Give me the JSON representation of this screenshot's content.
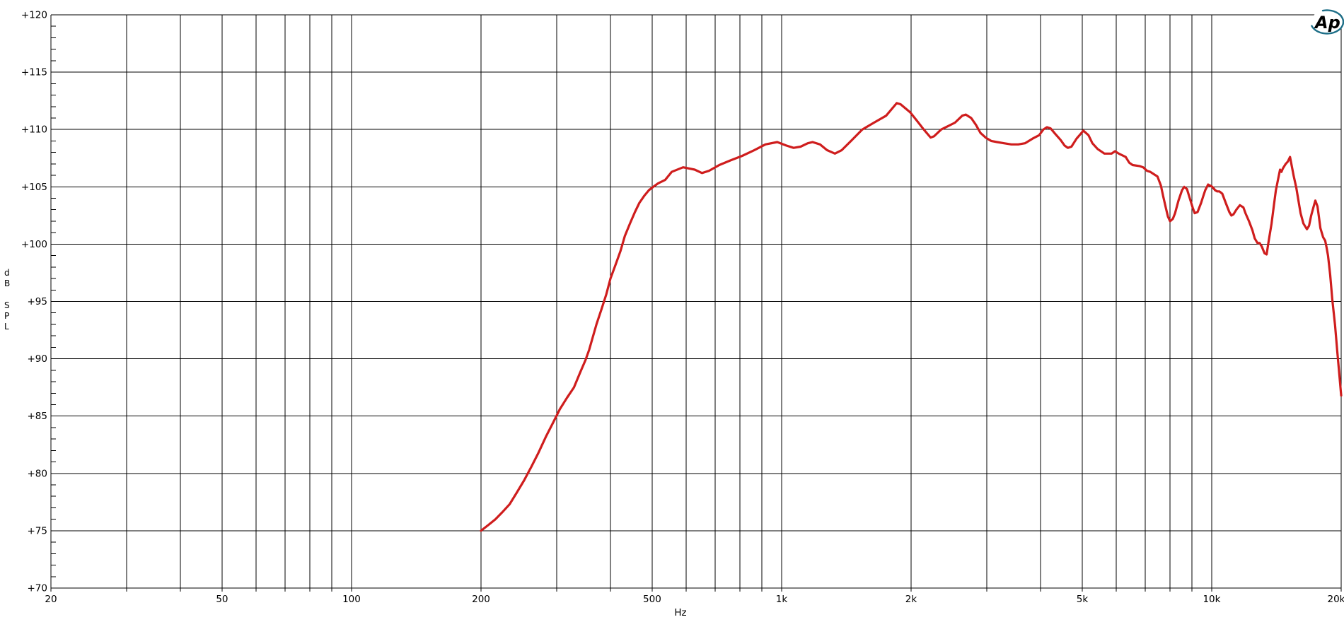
{
  "window": {
    "background": "#ffffff"
  },
  "logo": {
    "text": "Ap",
    "color": "#1d6e87"
  },
  "chart_data": {
    "type": "line",
    "title": "",
    "xlabel": "Hz",
    "ylabel": "dB SPL",
    "ylabel_stacked": [
      "d",
      "B",
      "S",
      "P",
      "L"
    ],
    "x_scale": "log",
    "xlim": [
      20,
      20000
    ],
    "ylim": [
      70,
      120
    ],
    "grid": true,
    "legend_position": "none",
    "x_tick_labels": [
      {
        "f": 20,
        "label": "20"
      },
      {
        "f": 50,
        "label": "50"
      },
      {
        "f": 100,
        "label": "100"
      },
      {
        "f": 200,
        "label": "200"
      },
      {
        "f": 500,
        "label": "500"
      },
      {
        "f": 1000,
        "label": "1k"
      },
      {
        "f": 2000,
        "label": "2k"
      },
      {
        "f": 5000,
        "label": "5k"
      },
      {
        "f": 10000,
        "label": "10k"
      },
      {
        "f": 20000,
        "label": "20k"
      }
    ],
    "x_gridlines": [
      20,
      30,
      40,
      50,
      60,
      70,
      80,
      90,
      100,
      200,
      300,
      400,
      500,
      600,
      700,
      800,
      900,
      1000,
      2000,
      3000,
      4000,
      5000,
      6000,
      7000,
      8000,
      9000,
      10000,
      20000
    ],
    "y_major_ticks": [
      70,
      75,
      80,
      85,
      90,
      95,
      100,
      105,
      110,
      115,
      120
    ],
    "y_tick_prefix": "+",
    "y_minor_step": 1,
    "series": [
      {
        "name": "SPL frequency response",
        "color": "#cf1d1d",
        "points": [
          [
            200,
            75.0
          ],
          [
            208,
            75.5
          ],
          [
            216,
            76.0
          ],
          [
            224,
            76.6
          ],
          [
            233,
            77.3
          ],
          [
            242,
            78.3
          ],
          [
            252,
            79.4
          ],
          [
            262,
            80.6
          ],
          [
            272,
            81.8
          ],
          [
            283,
            83.2
          ],
          [
            294,
            84.4
          ],
          [
            305,
            85.6
          ],
          [
            317,
            86.6
          ],
          [
            329,
            87.5
          ],
          [
            340,
            88.8
          ],
          [
            350,
            89.9
          ],
          [
            357,
            90.8
          ],
          [
            362,
            91.6
          ],
          [
            371,
            93.0
          ],
          [
            381,
            94.3
          ],
          [
            391,
            95.6
          ],
          [
            400,
            97.0
          ],
          [
            411,
            98.2
          ],
          [
            422,
            99.4
          ],
          [
            432,
            100.7
          ],
          [
            444,
            101.8
          ],
          [
            456,
            102.8
          ],
          [
            467,
            103.6
          ],
          [
            479,
            104.2
          ],
          [
            491,
            104.7
          ],
          [
            503,
            105.0
          ],
          [
            516,
            105.3
          ],
          [
            536,
            105.6
          ],
          [
            555,
            106.3
          ],
          [
            590,
            106.7
          ],
          [
            628,
            106.5
          ],
          [
            653,
            106.2
          ],
          [
            678,
            106.4
          ],
          [
            716,
            106.9
          ],
          [
            760,
            107.3
          ],
          [
            810,
            107.7
          ],
          [
            864,
            108.2
          ],
          [
            917,
            108.7
          ],
          [
            977,
            108.9
          ],
          [
            1025,
            108.6
          ],
          [
            1066,
            108.4
          ],
          [
            1107,
            108.5
          ],
          [
            1150,
            108.8
          ],
          [
            1180,
            108.9
          ],
          [
            1228,
            108.7
          ],
          [
            1275,
            108.2
          ],
          [
            1330,
            107.9
          ],
          [
            1380,
            108.2
          ],
          [
            1450,
            109.0
          ],
          [
            1540,
            110.0
          ],
          [
            1640,
            110.6
          ],
          [
            1750,
            111.2
          ],
          [
            1852,
            112.3
          ],
          [
            1890,
            112.2
          ],
          [
            1990,
            111.5
          ],
          [
            2060,
            110.8
          ],
          [
            2140,
            110.0
          ],
          [
            2220,
            109.3
          ],
          [
            2260,
            109.4
          ],
          [
            2350,
            110.0
          ],
          [
            2440,
            110.3
          ],
          [
            2530,
            110.6
          ],
          [
            2630,
            111.2
          ],
          [
            2680,
            111.3
          ],
          [
            2760,
            111.0
          ],
          [
            2830,
            110.4
          ],
          [
            2900,
            109.7
          ],
          [
            2980,
            109.3
          ],
          [
            3070,
            109.0
          ],
          [
            3170,
            108.9
          ],
          [
            3290,
            108.8
          ],
          [
            3420,
            108.7
          ],
          [
            3550,
            108.7
          ],
          [
            3680,
            108.8
          ],
          [
            3830,
            109.2
          ],
          [
            3970,
            109.5
          ],
          [
            4060,
            110.0
          ],
          [
            4140,
            110.2
          ],
          [
            4220,
            110.1
          ],
          [
            4330,
            109.6
          ],
          [
            4450,
            109.1
          ],
          [
            4550,
            108.6
          ],
          [
            4630,
            108.4
          ],
          [
            4720,
            108.5
          ],
          [
            4850,
            109.2
          ],
          [
            4980,
            109.7
          ],
          [
            5030,
            109.9
          ],
          [
            5170,
            109.5
          ],
          [
            5280,
            108.8
          ],
          [
            5430,
            108.3
          ],
          [
            5630,
            107.9
          ],
          [
            5850,
            107.9
          ],
          [
            5960,
            108.1
          ],
          [
            6080,
            107.9
          ],
          [
            6310,
            107.6
          ],
          [
            6430,
            107.1
          ],
          [
            6550,
            106.9
          ],
          [
            6810,
            106.8
          ],
          [
            6930,
            106.7
          ],
          [
            7070,
            106.4
          ],
          [
            7200,
            106.3
          ],
          [
            7340,
            106.1
          ],
          [
            7480,
            105.9
          ],
          [
            7620,
            105.1
          ],
          [
            7710,
            104.2
          ],
          [
            7820,
            103.2
          ],
          [
            7910,
            102.4
          ],
          [
            8000,
            102.0
          ],
          [
            8120,
            102.2
          ],
          [
            8220,
            102.7
          ],
          [
            8370,
            103.8
          ],
          [
            8530,
            104.7
          ],
          [
            8630,
            105.0
          ],
          [
            8760,
            104.8
          ],
          [
            8860,
            104.2
          ],
          [
            9030,
            103.2
          ],
          [
            9130,
            102.7
          ],
          [
            9270,
            102.8
          ],
          [
            9450,
            103.6
          ],
          [
            9560,
            104.2
          ],
          [
            9660,
            104.7
          ],
          [
            9810,
            105.2
          ],
          [
            9920,
            105.1
          ],
          [
            10030,
            105.0
          ],
          [
            10190,
            104.7
          ],
          [
            10300,
            104.6
          ],
          [
            10420,
            104.6
          ],
          [
            10580,
            104.4
          ],
          [
            10780,
            103.6
          ],
          [
            10990,
            102.8
          ],
          [
            11110,
            102.5
          ],
          [
            11240,
            102.6
          ],
          [
            11410,
            103.0
          ],
          [
            11630,
            103.4
          ],
          [
            11850,
            103.2
          ],
          [
            11980,
            102.7
          ],
          [
            12210,
            102.0
          ],
          [
            12440,
            101.2
          ],
          [
            12590,
            100.5
          ],
          [
            12780,
            100.1
          ],
          [
            12920,
            100.1
          ],
          [
            13070,
            99.8
          ],
          [
            13270,
            99.2
          ],
          [
            13420,
            99.1
          ],
          [
            13570,
            100.3
          ],
          [
            13780,
            101.8
          ],
          [
            13940,
            103.3
          ],
          [
            14100,
            104.7
          ],
          [
            14310,
            105.9
          ],
          [
            14420,
            106.5
          ],
          [
            14530,
            106.3
          ],
          [
            14640,
            106.6
          ],
          [
            14860,
            107.0
          ],
          [
            15030,
            107.2
          ],
          [
            15210,
            107.6
          ],
          [
            15500,
            106.0
          ],
          [
            15730,
            104.9
          ],
          [
            15910,
            103.8
          ],
          [
            16090,
            102.7
          ],
          [
            16340,
            101.8
          ],
          [
            16650,
            101.3
          ],
          [
            16840,
            101.6
          ],
          [
            17030,
            102.5
          ],
          [
            17290,
            103.4
          ],
          [
            17420,
            103.8
          ],
          [
            17620,
            103.3
          ],
          [
            17750,
            102.4
          ],
          [
            17890,
            101.4
          ],
          [
            18160,
            100.6
          ],
          [
            18360,
            100.3
          ],
          [
            18500,
            99.7
          ],
          [
            18640,
            99.0
          ],
          [
            18860,
            97.3
          ],
          [
            19070,
            95.2
          ],
          [
            19360,
            92.9
          ],
          [
            19580,
            90.7
          ],
          [
            19800,
            88.7
          ],
          [
            20000,
            86.8
          ]
        ]
      }
    ]
  }
}
